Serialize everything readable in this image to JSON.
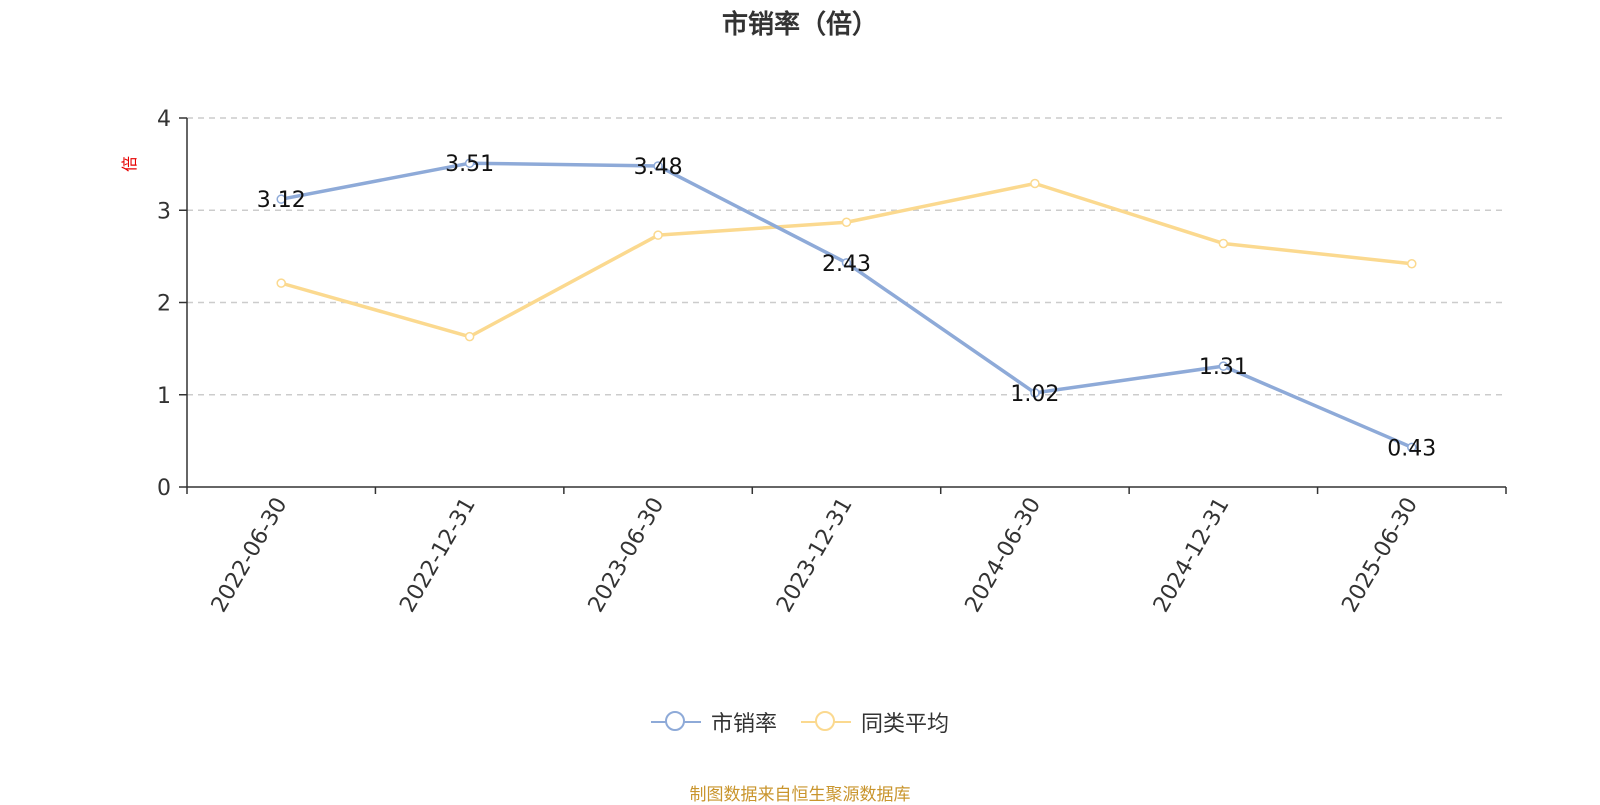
{
  "chart_data": {
    "type": "line",
    "title": "市销率（倍）",
    "ylabel": "倍",
    "categories": [
      "2022-06-30",
      "2022-12-31",
      "2023-06-30",
      "2023-12-31",
      "2024-06-30",
      "2024-12-31",
      "2025-06-30"
    ],
    "ylim": [
      0,
      4
    ],
    "yticks": [
      "0",
      "1",
      "2",
      "3",
      "4"
    ],
    "grid": true,
    "legend_position": "bottom",
    "series": [
      {
        "name": "市销率",
        "color": "#8eaad8",
        "values": [
          3.12,
          3.51,
          3.48,
          2.43,
          1.02,
          1.31,
          0.43
        ],
        "labels": [
          "3.12",
          "3.51",
          "3.48",
          "2.43",
          "1.02",
          "1.31",
          "0.43"
        ]
      },
      {
        "name": "同类平均",
        "color": "#fbd98f",
        "values": [
          2.21,
          1.63,
          2.73,
          2.87,
          3.29,
          2.64,
          2.42
        ]
      }
    ]
  },
  "source_note": "制图数据来自恒生聚源数据库"
}
